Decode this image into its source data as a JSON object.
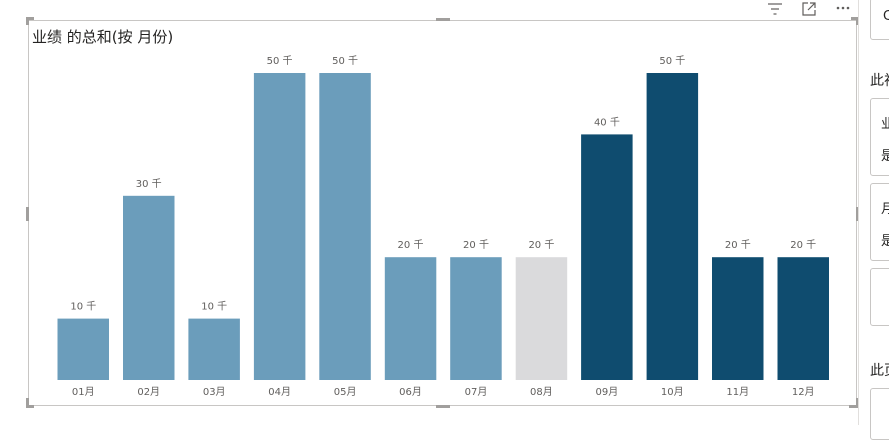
{
  "toolbar": {
    "filter_icon": "filter-icon",
    "focus_icon": "focus-mode-icon",
    "more_icon": "more-options-icon"
  },
  "colors": {
    "default_bar": "#6b9dbb",
    "highlight_bar": "#0f4c6f",
    "dim_bar": "#dadadc",
    "label": "#605e5c"
  },
  "chart_data": {
    "type": "bar",
    "title": "业绩 的总和(按 月份)",
    "categories": [
      "01月",
      "02月",
      "03月",
      "04月",
      "05月",
      "06月",
      "07月",
      "08月",
      "09月",
      "10月",
      "11月",
      "12月"
    ],
    "values": [
      10000,
      30000,
      10000,
      50000,
      50000,
      20000,
      20000,
      20000,
      40000,
      50000,
      20000,
      20000
    ],
    "data_labels": [
      "10 千",
      "30 千",
      "10 千",
      "50 千",
      "50 千",
      "20 千",
      "20 千",
      "20 千",
      "40 千",
      "50 千",
      "20 千",
      "20 千"
    ],
    "bar_colors": [
      "#6b9dbb",
      "#6b9dbb",
      "#6b9dbb",
      "#6b9dbb",
      "#6b9dbb",
      "#6b9dbb",
      "#6b9dbb",
      "#dadadc",
      "#0f4c6f",
      "#0f4c6f",
      "#0f4c6f",
      "#0f4c6f"
    ],
    "ylim": [
      0,
      50000
    ],
    "grid": false,
    "legend": "none"
  },
  "right_pane": {
    "top_box_char": "C",
    "section1_label": "此视",
    "field1_line1": "业",
    "field1_line2": "是",
    "field2_line1": "月",
    "field2_line2": "是",
    "section2_label": "此页"
  }
}
